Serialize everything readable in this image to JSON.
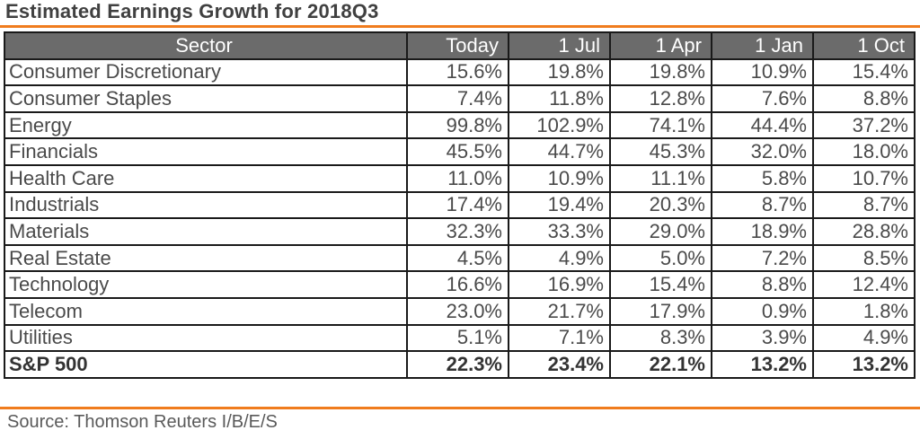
{
  "title": "Estimated Earnings Growth for  2018Q3",
  "source": "Source: Thomson Reuters I/B/E/S",
  "colors": {
    "accent_rule": "#f07c1e",
    "header_bg": "#6b6b6b"
  },
  "chart_data": {
    "type": "table",
    "columns": [
      "Sector",
      "Today",
      "1 Jul",
      "1 Apr",
      "1 Jan",
      "1 Oct"
    ],
    "rows": [
      {
        "sector": "Consumer Discretionary",
        "values": [
          "15.6%",
          "19.8%",
          "19.8%",
          "10.9%",
          "15.4%"
        ]
      },
      {
        "sector": "Consumer Staples",
        "values": [
          "7.4%",
          "11.8%",
          "12.8%",
          "7.6%",
          "8.8%"
        ]
      },
      {
        "sector": "Energy",
        "values": [
          "99.8%",
          "102.9%",
          "74.1%",
          "44.4%",
          "37.2%"
        ]
      },
      {
        "sector": "Financials",
        "values": [
          "45.5%",
          "44.7%",
          "45.3%",
          "32.0%",
          "18.0%"
        ]
      },
      {
        "sector": "Health Care",
        "values": [
          "11.0%",
          "10.9%",
          "11.1%",
          "5.8%",
          "10.7%"
        ]
      },
      {
        "sector": "Industrials",
        "values": [
          "17.4%",
          "19.4%",
          "20.3%",
          "8.7%",
          "8.7%"
        ]
      },
      {
        "sector": "Materials",
        "values": [
          "32.3%",
          "33.3%",
          "29.0%",
          "18.9%",
          "28.8%"
        ]
      },
      {
        "sector": "Real Estate",
        "values": [
          "4.5%",
          "4.9%",
          "5.0%",
          "7.2%",
          "8.5%"
        ]
      },
      {
        "sector": "Technology",
        "values": [
          "16.6%",
          "16.9%",
          "15.4%",
          "8.8%",
          "12.4%"
        ]
      },
      {
        "sector": "Telecom",
        "values": [
          "23.0%",
          "21.7%",
          "17.9%",
          "0.9%",
          "1.8%"
        ]
      },
      {
        "sector": "Utilities",
        "values": [
          "5.1%",
          "7.1%",
          "8.3%",
          "3.9%",
          "4.9%"
        ]
      }
    ],
    "total": {
      "sector": "S&P 500",
      "values": [
        "22.3%",
        "23.4%",
        "22.1%",
        "13.2%",
        "13.2%"
      ]
    }
  }
}
